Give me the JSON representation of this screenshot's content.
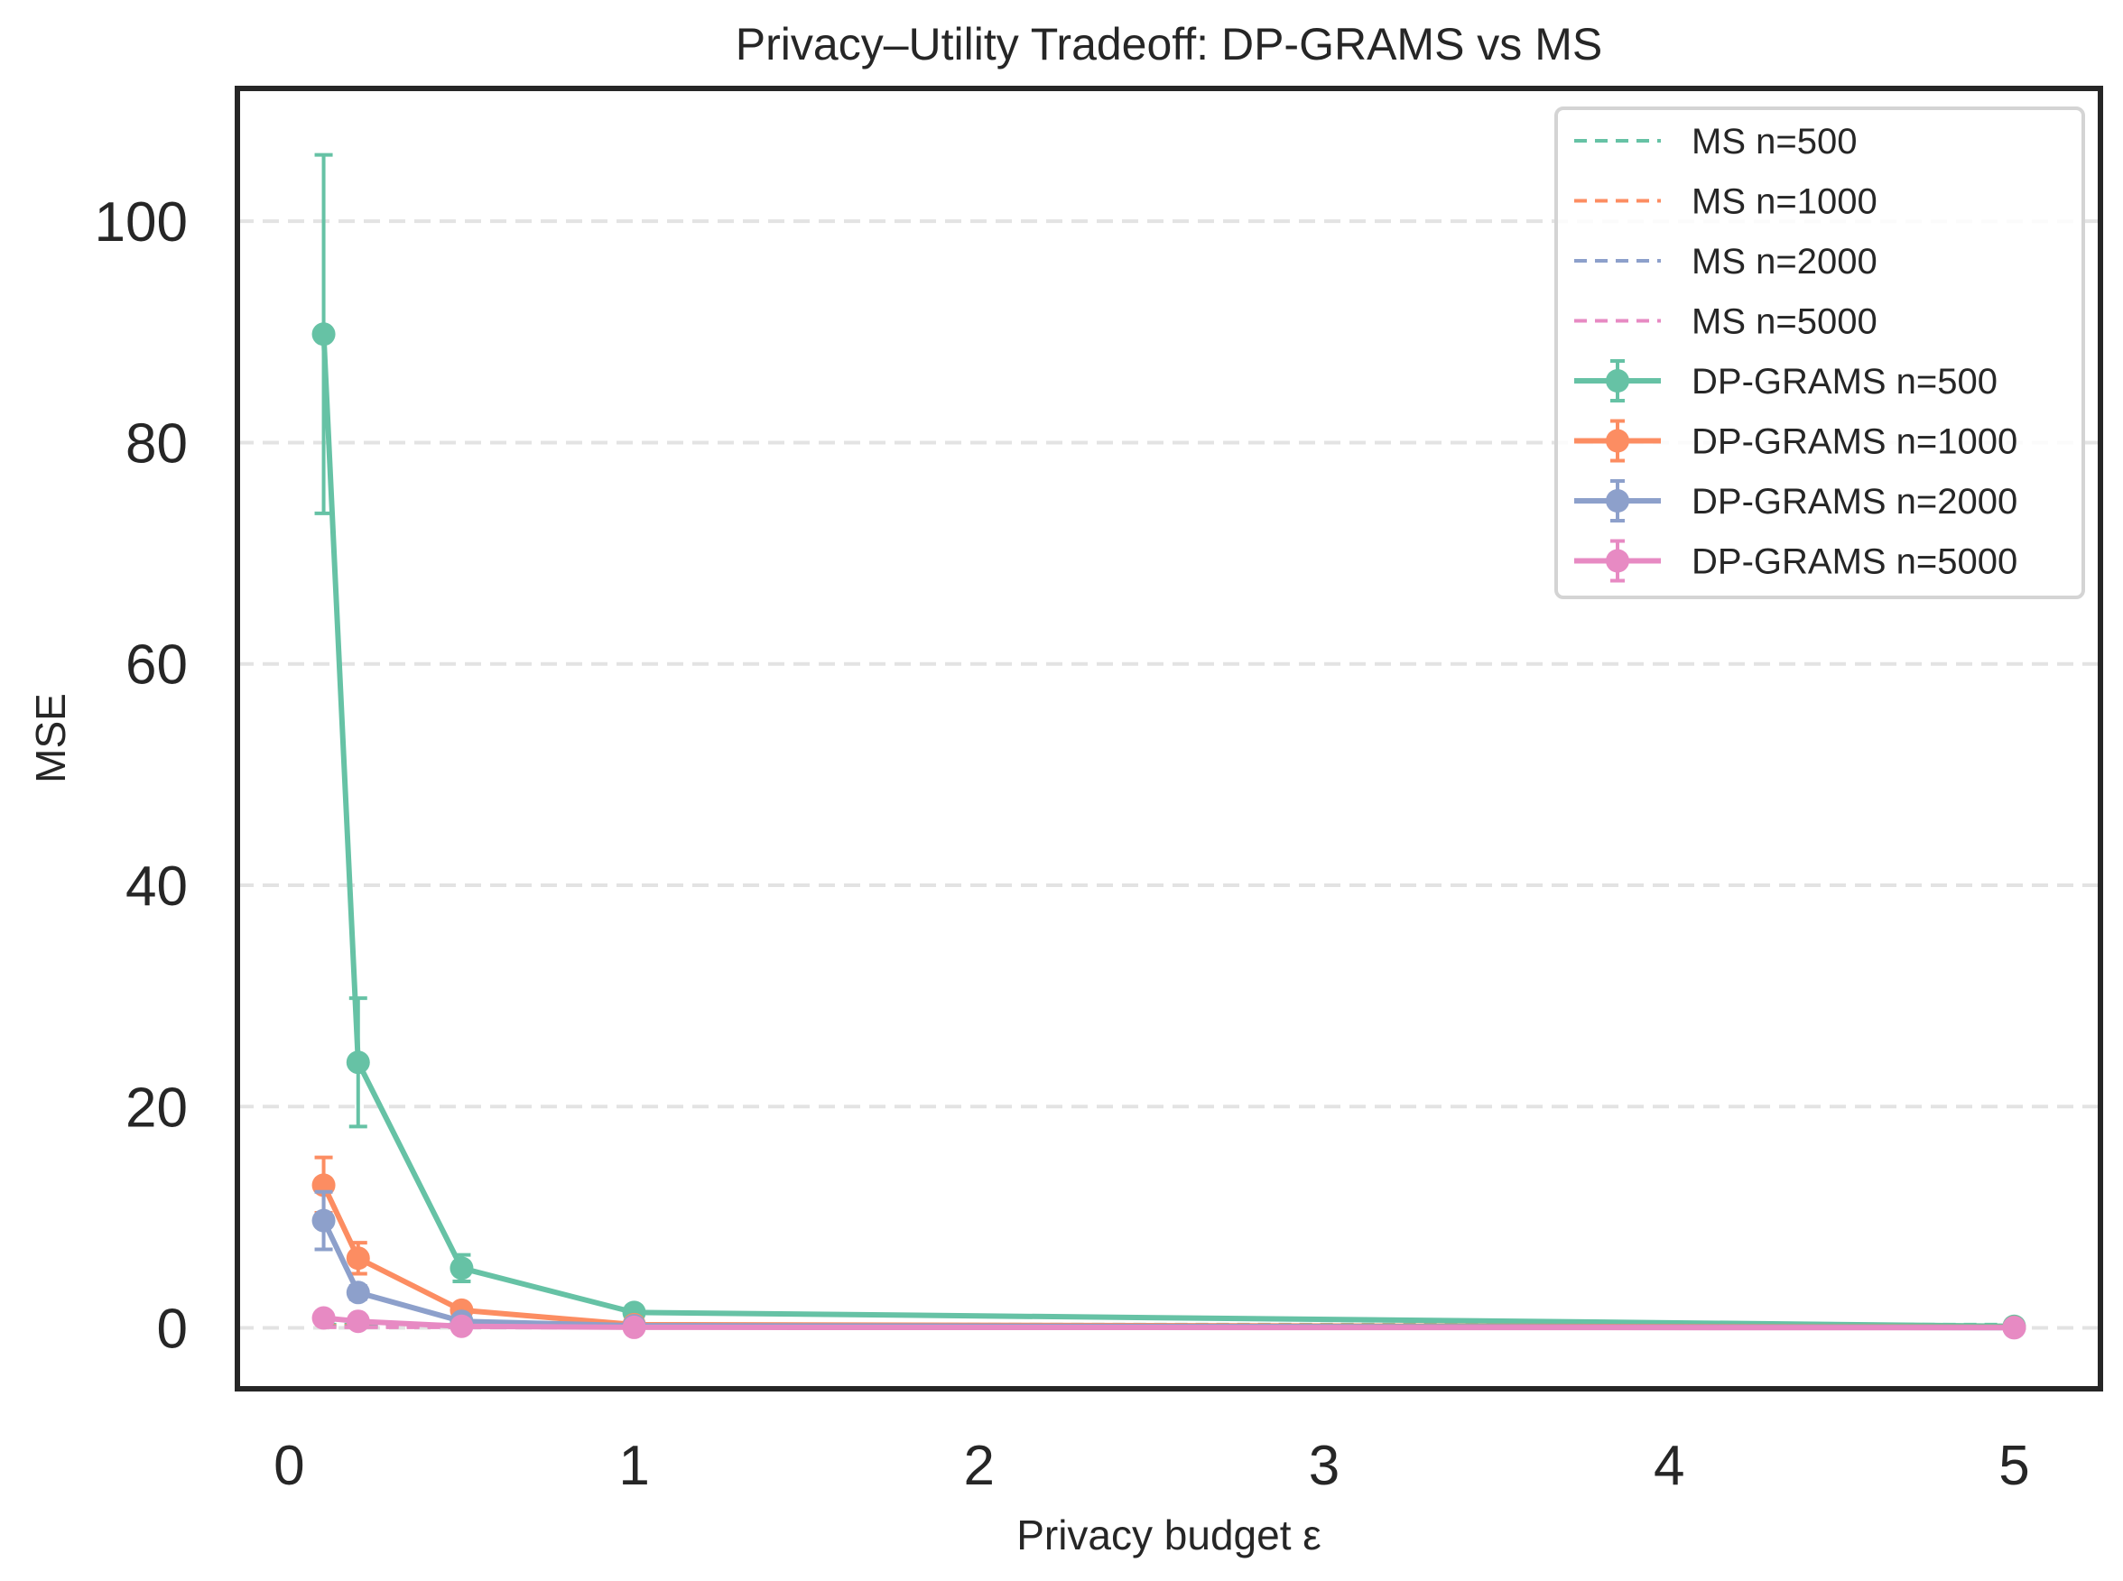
{
  "chart_data": {
    "type": "line",
    "title": "Privacy–Utility Tradeoff: DP-GRAMS vs MS",
    "xlabel": "Privacy budget ε",
    "ylabel": "MSE",
    "xlim": [
      -0.15,
      5.25
    ],
    "ylim": [
      -5.5,
      112
    ],
    "xticks": [
      0,
      1,
      2,
      3,
      4,
      5
    ],
    "xtick_labels": [
      "0",
      "1",
      "2",
      "3",
      "4",
      "5"
    ],
    "yticks": [
      0,
      20,
      40,
      60,
      80,
      100
    ],
    "ytick_labels": [
      "0",
      "20",
      "40",
      "60",
      "80",
      "100"
    ],
    "grid": "horizontal dashed",
    "legend_position": "top-right",
    "x": [
      0.1,
      0.2,
      0.5,
      1,
      5
    ],
    "series": [
      {
        "name": "MS n=500",
        "kind": "dashed",
        "color": "#66c2a5",
        "values": [
          0.3,
          0.3,
          0.3,
          0.3,
          0.3
        ]
      },
      {
        "name": "MS n=1000",
        "kind": "dashed",
        "color": "#fc8d62",
        "values": [
          0.2,
          0.2,
          0.2,
          0.2,
          0.2
        ]
      },
      {
        "name": "MS n=2000",
        "kind": "dashed",
        "color": "#8da0cb",
        "values": [
          0.1,
          0.1,
          0.1,
          0.1,
          0.1
        ]
      },
      {
        "name": "MS n=5000",
        "kind": "dashed",
        "color": "#e78ac3",
        "values": [
          0.05,
          0.05,
          0.05,
          0.05,
          0.05
        ]
      },
      {
        "name": "DP-GRAMS n=500",
        "kind": "errorbar",
        "color": "#66c2a5",
        "values": [
          89.8,
          24.0,
          5.4,
          1.4,
          0.15
        ],
        "errors": [
          16.2,
          5.8,
          1.2,
          0.3,
          0.05
        ]
      },
      {
        "name": "DP-GRAMS n=1000",
        "kind": "errorbar",
        "color": "#fc8d62",
        "values": [
          12.9,
          6.3,
          1.6,
          0.3,
          0.05
        ],
        "errors": [
          2.5,
          1.4,
          0.4,
          0.1,
          0.02
        ]
      },
      {
        "name": "DP-GRAMS n=2000",
        "kind": "errorbar",
        "color": "#8da0cb",
        "values": [
          9.7,
          3.2,
          0.6,
          0.2,
          0.03
        ],
        "errors": [
          2.6,
          0.6,
          0.2,
          0.05,
          0.01
        ]
      },
      {
        "name": "DP-GRAMS n=5000",
        "kind": "errorbar",
        "color": "#e78ac3",
        "values": [
          0.9,
          0.6,
          0.15,
          0.05,
          0.02
        ],
        "errors": [
          0.2,
          0.1,
          0.05,
          0.02,
          0.01
        ]
      }
    ]
  }
}
